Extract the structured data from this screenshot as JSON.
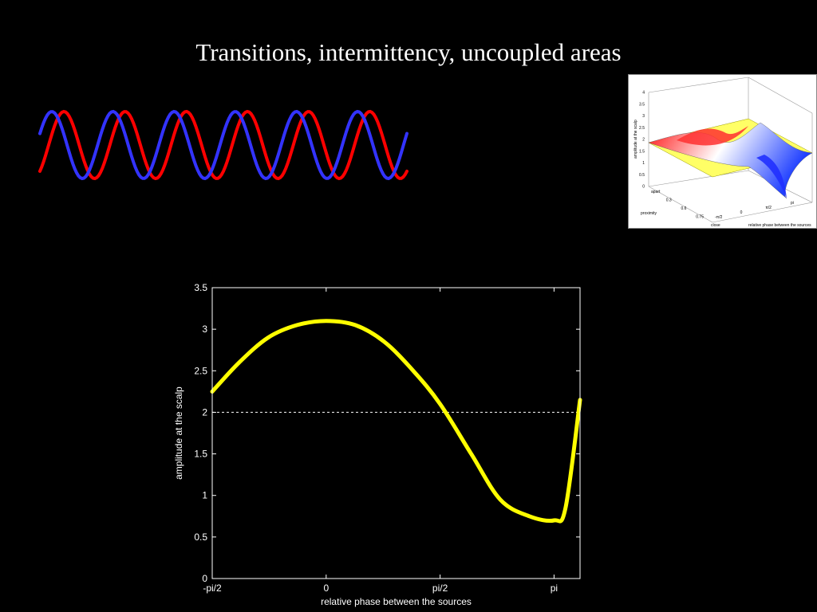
{
  "slide": {
    "title": "Transitions, intermittency, uncoupled areas"
  },
  "waves": {
    "red_color": "#ff0000",
    "blue_color": "#3333ff",
    "cycles": 6
  },
  "thumbnail": {
    "ylabel": "amplitude at the scalp",
    "xlabel": "relative phase between the sources",
    "depth_label": "proximity",
    "z_ticks": [
      "0",
      "0.5",
      "1",
      "1.5",
      "2",
      "2.5",
      "3",
      "3.5",
      "4"
    ],
    "depth_ticks": [
      "apart",
      "0.3",
      "0.6",
      "0.75",
      "close"
    ],
    "phase_ticks": [
      "-π/2",
      "0",
      "π/2",
      "pi"
    ],
    "surface_colors": [
      "#ff0000",
      "#ffffff",
      "#2244ff"
    ],
    "plane_color": "#ffff66"
  },
  "chart_data": {
    "type": "line",
    "xlabel": "relative phase between the sources",
    "ylabel": "amplitude at the scalp",
    "ylim": [
      0,
      3.5
    ],
    "xlim": [
      -1.5708,
      3.5
    ],
    "x_ticks": [
      {
        "value": -1.5708,
        "label": "-pi/2"
      },
      {
        "value": 0,
        "label": "0"
      },
      {
        "value": 1.5708,
        "label": "pi/2"
      },
      {
        "value": 3.1416,
        "label": "pi"
      }
    ],
    "y_ticks": [
      {
        "value": 0,
        "label": "0"
      },
      {
        "value": 0.5,
        "label": "0.5"
      },
      {
        "value": 1,
        "label": "1"
      },
      {
        "value": 1.5,
        "label": "1.5"
      },
      {
        "value": 2,
        "label": "2"
      },
      {
        "value": 2.5,
        "label": "2.5"
      },
      {
        "value": 3,
        "label": "3"
      },
      {
        "value": 3.5,
        "label": "3.5"
      }
    ],
    "series": [
      {
        "color": "#ffff00",
        "x": [
          -1.5708,
          -1.2,
          -0.8,
          -0.4,
          0,
          0.4,
          0.8,
          1.2,
          1.5708,
          2.0,
          2.4,
          2.8,
          3.1416,
          3.3,
          3.5
        ],
        "y": [
          2.25,
          2.6,
          2.9,
          3.05,
          3.1,
          3.05,
          2.85,
          2.5,
          2.1,
          1.5,
          0.95,
          0.75,
          0.7,
          0.85,
          2.15
        ]
      }
    ],
    "reference_line": {
      "y": 2,
      "style": "dashed",
      "color": "#ffffff"
    },
    "grid": false
  }
}
